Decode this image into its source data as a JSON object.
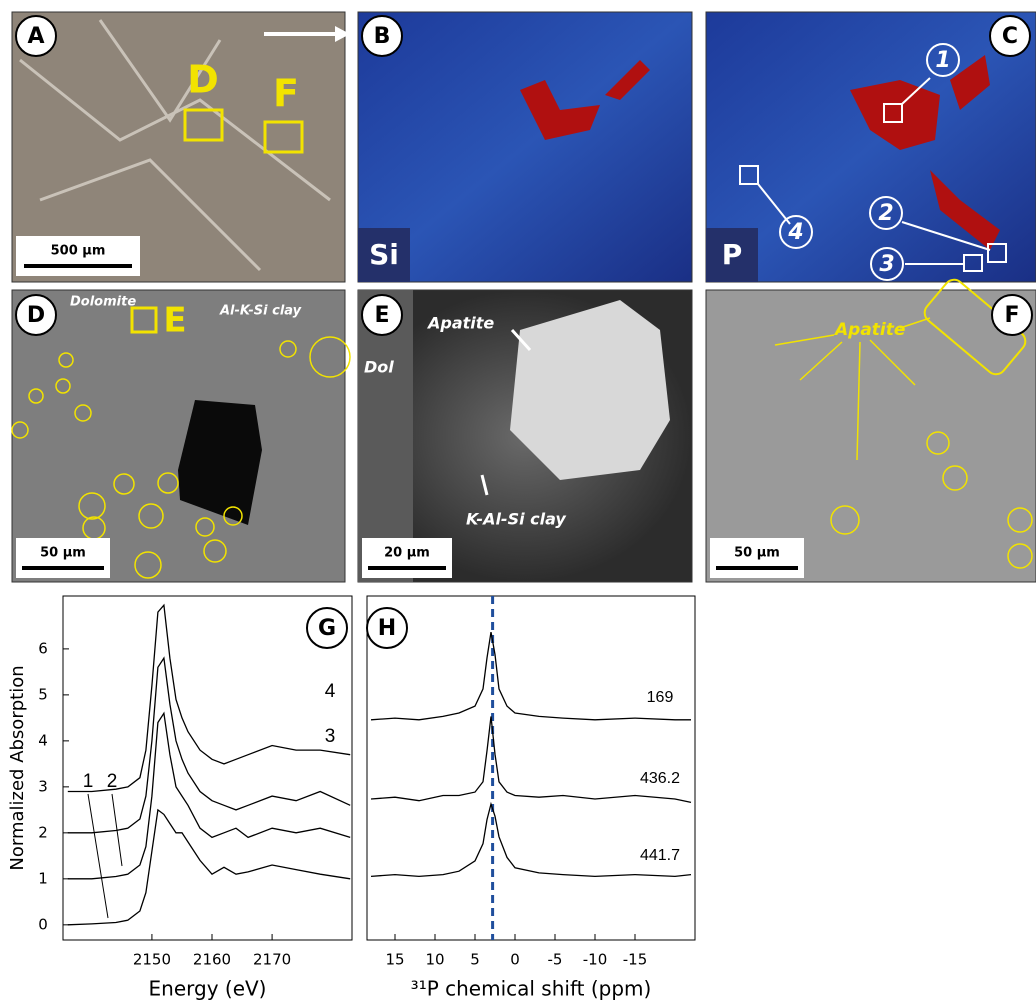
{
  "panels": [
    {
      "label": "A",
      "scale_bar": "500 µm",
      "annotations": [
        "D",
        "F"
      ]
    },
    {
      "label": "B",
      "element": "Si"
    },
    {
      "label": "C",
      "element": "P",
      "spots": [
        "1",
        "2",
        "3",
        "4"
      ]
    },
    {
      "label": "D",
      "scale_bar": "50 µm",
      "annotations": [
        "Dolomite",
        "Al-K-Si clay",
        "E"
      ]
    },
    {
      "label": "E",
      "scale_bar": "20 µm",
      "annotations": [
        "Apatite",
        "Dol",
        "K-Al-Si clay"
      ]
    },
    {
      "label": "F",
      "scale_bar": "50 µm",
      "annotations": [
        "Apatite"
      ]
    }
  ],
  "chart_data": [
    {
      "type": "line",
      "label": "G",
      "xlabel": "Energy (eV)",
      "ylabel": "Normalized Absorption",
      "x": [
        2136,
        2140,
        2144,
        2146,
        2148,
        2149,
        2150,
        2151,
        2152,
        2153,
        2154,
        2155,
        2156,
        2158,
        2160,
        2162,
        2164,
        2166,
        2170,
        2174,
        2178,
        2183
      ],
      "xlim": [
        2135.2,
        2183.3
      ],
      "xticks": [
        2150,
        2160,
        2170
      ],
      "ylim": [
        -0.33,
        7.15
      ],
      "yticks": [
        0,
        1,
        2,
        3,
        4,
        5,
        6
      ],
      "series": [
        {
          "name": "1",
          "color": "#000000",
          "values": [
            0,
            0.02,
            0.05,
            0.1,
            0.3,
            0.7,
            1.6,
            2.5,
            2.4,
            2.2,
            2.0,
            2.0,
            1.8,
            1.4,
            1.1,
            1.25,
            1.1,
            1.15,
            1.3,
            1.2,
            1.1,
            1.0
          ]
        },
        {
          "name": "2",
          "color": "#000000",
          "values": [
            1.0,
            1.0,
            1.05,
            1.1,
            1.3,
            1.7,
            2.8,
            4.4,
            4.6,
            3.7,
            3.0,
            2.8,
            2.6,
            2.1,
            1.9,
            2.0,
            2.1,
            1.9,
            2.1,
            2.0,
            2.1,
            1.9
          ]
        },
        {
          "name": "3",
          "color": "#000000",
          "values": [
            2.0,
            2.0,
            2.05,
            2.1,
            2.3,
            2.8,
            4.0,
            5.6,
            5.8,
            4.8,
            4.0,
            3.6,
            3.3,
            2.9,
            2.7,
            2.6,
            2.5,
            2.6,
            2.8,
            2.7,
            2.9,
            2.6
          ]
        },
        {
          "name": "4",
          "color": "#000000",
          "values": [
            2.9,
            2.9,
            2.95,
            3.0,
            3.2,
            3.8,
            5.2,
            6.8,
            6.95,
            5.8,
            4.9,
            4.5,
            4.2,
            3.8,
            3.6,
            3.5,
            3.6,
            3.7,
            3.9,
            3.8,
            3.8,
            3.7
          ]
        }
      ]
    },
    {
      "type": "line",
      "label": "H",
      "xlabel": "³¹P chemical shift (ppm)",
      "vline": 2.8,
      "vline_color": "#1f4e9c",
      "x": [
        18,
        15,
        12,
        9,
        7,
        5,
        4,
        3.5,
        3,
        2.5,
        2,
        1,
        0,
        -3,
        -6,
        -10,
        -15,
        -20,
        -22
      ],
      "xlim": [
        18.5,
        -22.5
      ],
      "xticks": [
        15,
        10,
        5,
        0,
        -5,
        -10,
        -15
      ],
      "ylim": [
        0,
        10
      ],
      "series": [
        {
          "name": "169",
          "color": "#000000",
          "values": [
            6.4,
            6.45,
            6.4,
            6.5,
            6.6,
            6.8,
            7.3,
            8.2,
            8.95,
            8.3,
            7.3,
            6.8,
            6.6,
            6.5,
            6.45,
            6.4,
            6.45,
            6.4,
            6.4
          ]
        },
        {
          "name": "436.2",
          "color": "#000000",
          "values": [
            4.1,
            4.15,
            4.05,
            4.2,
            4.2,
            4.3,
            4.6,
            5.5,
            6.5,
            5.4,
            4.6,
            4.3,
            4.2,
            4.15,
            4.2,
            4.1,
            4.2,
            4.1,
            4.0
          ]
        },
        {
          "name": "441.7",
          "color": "#000000",
          "values": [
            1.85,
            1.9,
            1.85,
            1.9,
            2.0,
            2.3,
            2.8,
            3.5,
            3.95,
            3.6,
            3.0,
            2.4,
            2.1,
            1.95,
            1.9,
            1.85,
            1.9,
            1.85,
            1.9
          ]
        }
      ]
    }
  ]
}
